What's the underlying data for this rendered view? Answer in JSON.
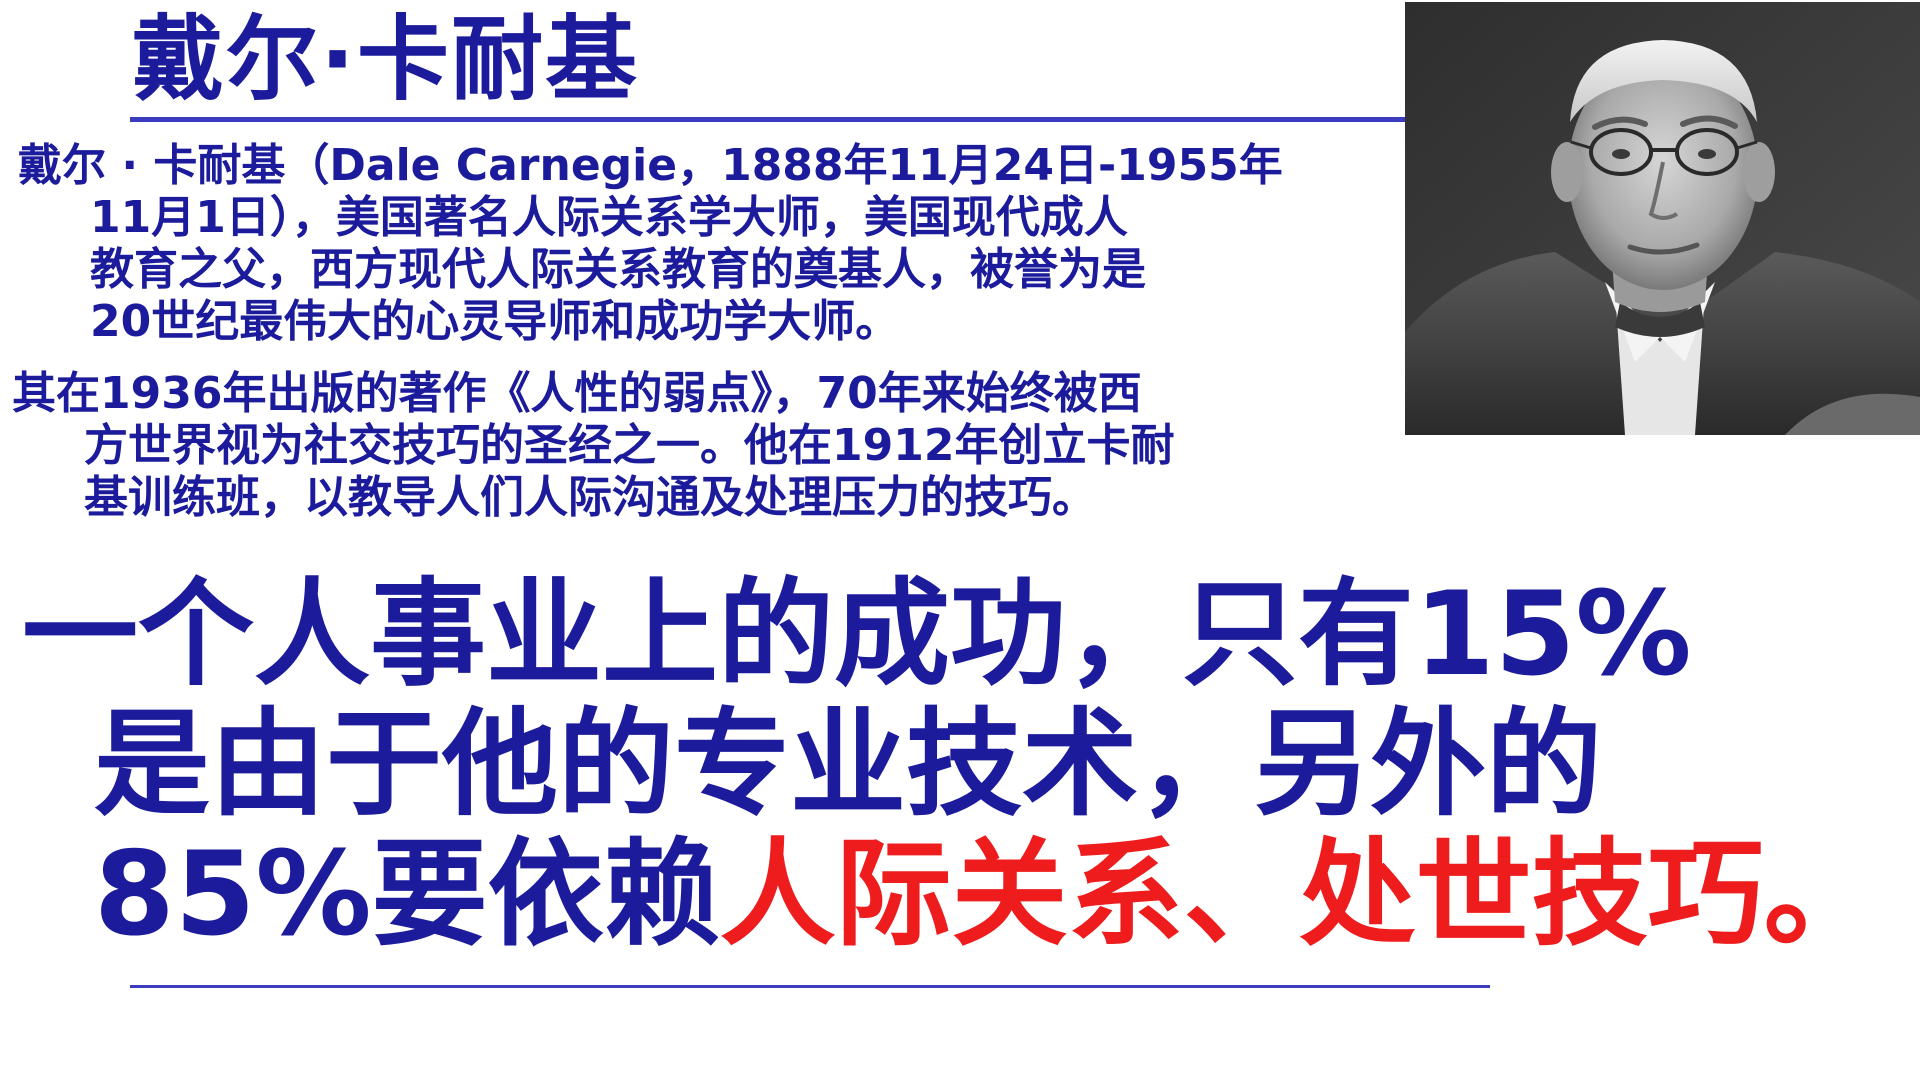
{
  "slide": {
    "title": "戴尔·卡耐基",
    "intro_lines": [
      "戴尔 · 卡耐基（Dale Carnegie，1888年11月24日-1955年",
      "11月1日），美国著名人际关系学大师，美国现代成人",
      "教育之父，西方现代人际关系教育的奠基人，被誉为是",
      "20世纪最伟大的心灵导师和成功学大师。"
    ],
    "book_lines": [
      "其在1936年出版的著作《人性的弱点》，70年来始终被西",
      "方世界视为社交技巧的圣经之一。他在1912年创立卡耐",
      "基训练班，以教导人们人际沟通及处理压力的技巧。"
    ],
    "quote": {
      "line1": "一个人事业上的成功，只有15%",
      "line2": "是由于他的专业技术，另外的",
      "line3_prefix": "85%要依赖",
      "line3_highlight": "人际关系、处世技巧。"
    },
    "portrait_icon": "portrait-photo-icon",
    "colors": {
      "text_blue": "#1b1b9c",
      "highlight_red": "#ee1c1c",
      "rule_blue": "#3c3cc0"
    }
  }
}
